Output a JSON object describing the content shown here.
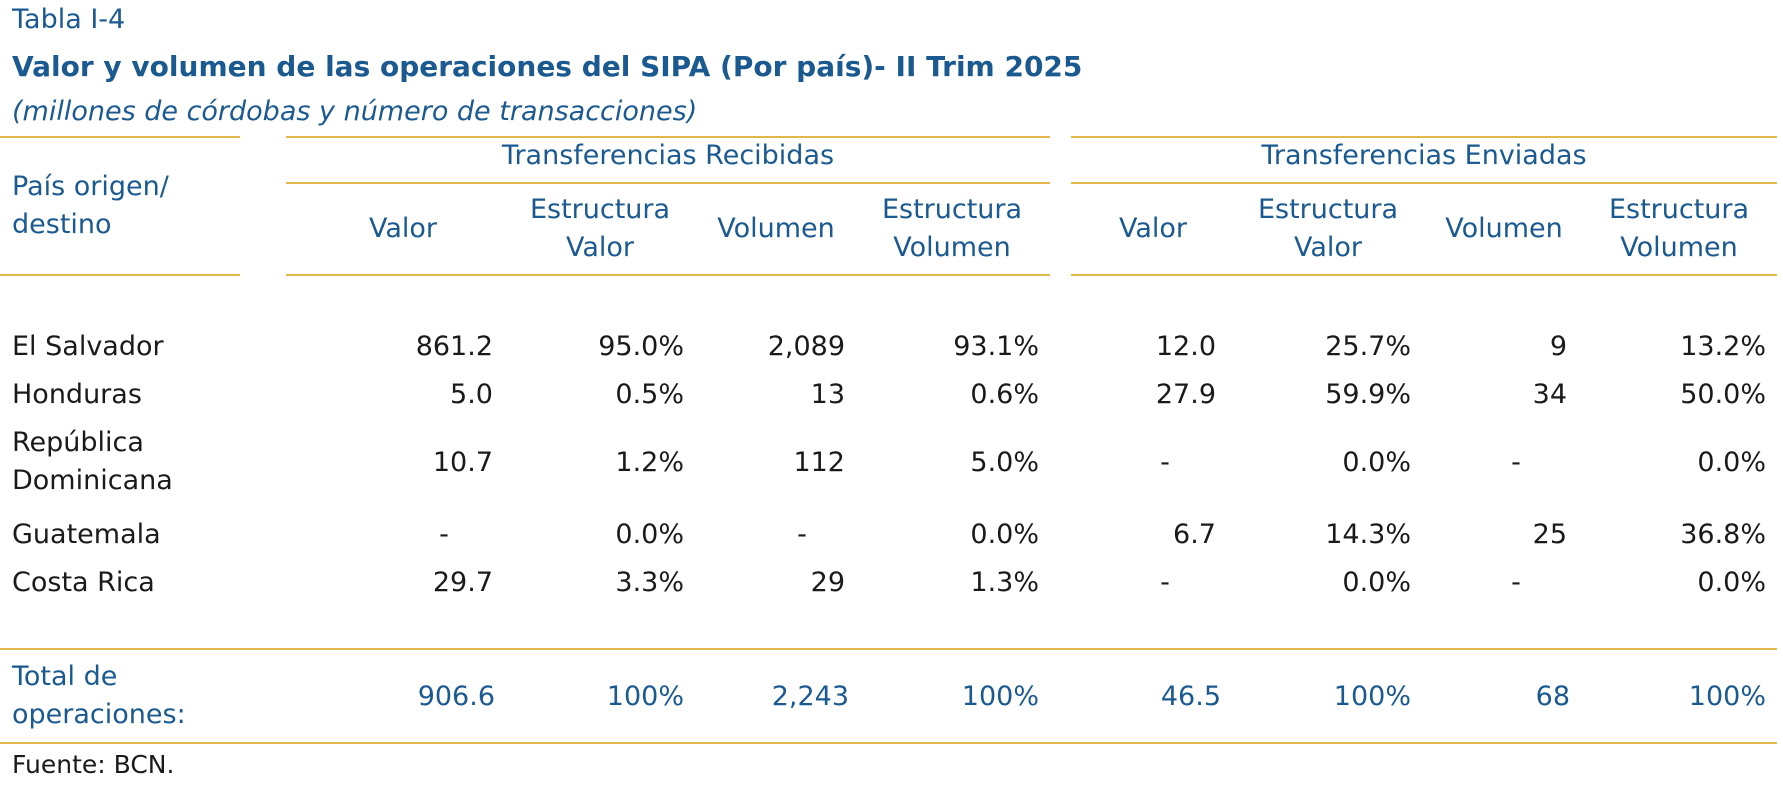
{
  "header": {
    "label": "Tabla I-4",
    "title": "Valor y volumen de las operaciones del SIPA (Por país)- II Trim 2025",
    "subtitle": "(millones de córdobas y número de transacciones)"
  },
  "table": {
    "row_header": [
      "País origen/",
      "destino"
    ],
    "groups": [
      "Transferencias Recibidas",
      "Transferencias Enviadas"
    ],
    "columns": [
      [
        "Valor"
      ],
      [
        "Estructura",
        "Valor"
      ],
      [
        "Volumen"
      ],
      [
        "Estructura",
        "Volumen"
      ],
      [
        "Valor"
      ],
      [
        "Estructura",
        "Valor"
      ],
      [
        "Volumen"
      ],
      [
        "Estructura",
        "Volumen"
      ]
    ],
    "rows": [
      {
        "label": [
          "El Salvador"
        ],
        "values": [
          "861.2",
          "95.0%",
          "2,089",
          "93.1%",
          "12.0",
          "25.7%",
          "9",
          "13.2%"
        ]
      },
      {
        "label": [
          "Honduras"
        ],
        "values": [
          "5.0",
          "0.5%",
          "13",
          "0.6%",
          "27.9",
          "59.9%",
          "34",
          "50.0%"
        ]
      },
      {
        "label": [
          "República",
          "Dominicana"
        ],
        "values": [
          "10.7",
          "1.2%",
          "112",
          "5.0%",
          "-",
          "0.0%",
          "-",
          "0.0%"
        ]
      },
      {
        "label": [
          "Guatemala"
        ],
        "values": [
          "-",
          "0.0%",
          "-",
          "0.0%",
          "6.7",
          "14.3%",
          "25",
          "36.8%"
        ]
      },
      {
        "label": [
          "Costa Rica"
        ],
        "values": [
          "29.7",
          "3.3%",
          "29",
          "1.3%",
          "-",
          "0.0%",
          "-",
          "0.0%"
        ]
      }
    ],
    "total": {
      "label": [
        "Total de",
        "operaciones:"
      ],
      "values": [
        "906.6",
        "100%",
        "2,243",
        "100%",
        "46.5",
        "100%",
        "68",
        "100%"
      ]
    }
  },
  "source": "Fuente: BCN.",
  "colors": {
    "text_blue": "#1b5a91",
    "rule_gold": "#e3b84a",
    "body_text": "#1a1a1a"
  }
}
